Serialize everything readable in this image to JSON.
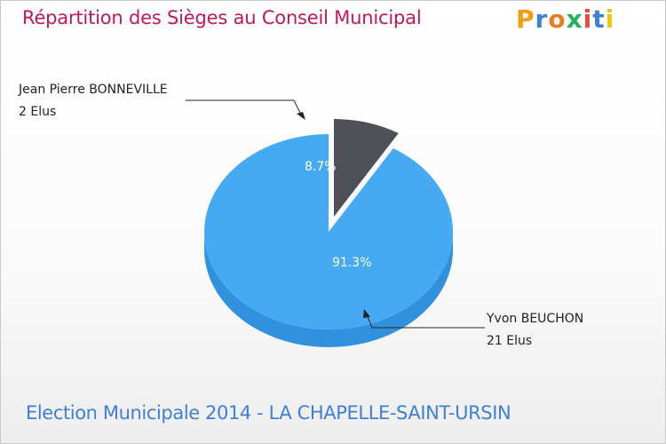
{
  "title": "Répartition des Sièges au Conseil Municipal",
  "logo": {
    "text": "Proxiti",
    "letters": [
      "P",
      "r",
      "o",
      "x",
      "i",
      "t",
      "i"
    ],
    "colors": [
      "#f39c12",
      "#3f7fd8",
      "#e67e22",
      "#27ae60",
      "#e74c3c",
      "#3f7fd8",
      "#f1c40f"
    ]
  },
  "footer": "Election Municipale 2014 - LA CHAPELLE-SAINT-URSIN",
  "chart_data": {
    "type": "pie",
    "title": "Répartition des Sièges au Conseil Municipal",
    "slices": [
      {
        "name": "Jean Pierre BONNEVILLE",
        "seats": 2,
        "seats_label": "2 Elus",
        "percent": 8.7,
        "percent_label": "8.7%",
        "color": "#4d5157",
        "side_color": "#3a3d42"
      },
      {
        "name": "Yvon BEUCHON",
        "seats": 21,
        "seats_label": "21 Elus",
        "percent": 91.3,
        "percent_label": "91.3%",
        "color": "#45aaf2",
        "side_color": "#3191df"
      }
    ]
  }
}
